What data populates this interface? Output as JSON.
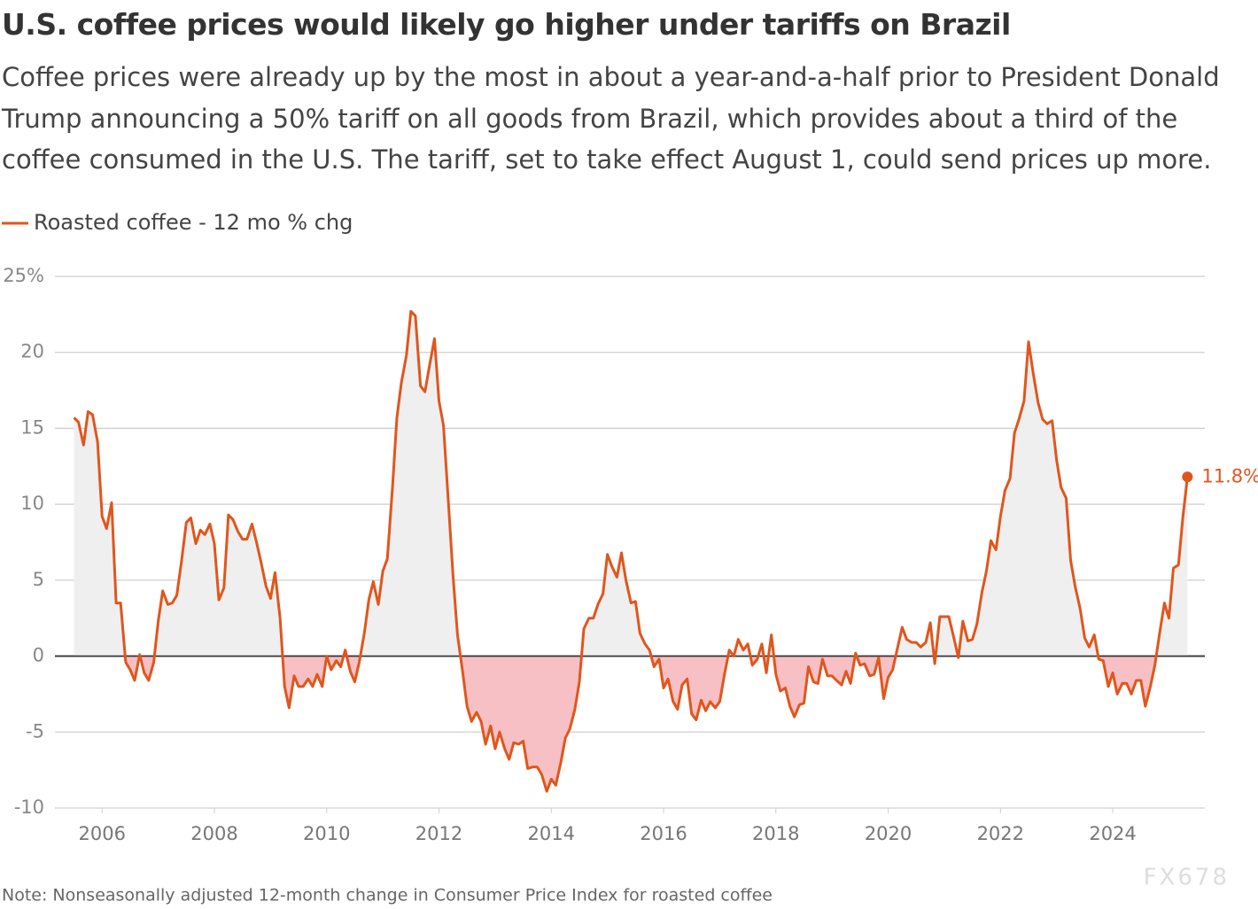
{
  "chart_data": {
    "type": "area-line",
    "title": "U.S. coffee prices would likely go higher under tariffs on Brazil",
    "subtitle": "Coffee prices were already up by the most in about a year-and-a-half prior to President Donald Trump announcing a 50% tariff on all goods from Brazil, which provides about a third of the coffee consumed in the U.S. The tariff, set to take effect August 1, could send prices up more.",
    "note": "Note: Nonseasonally adjusted 12-month change in Consumer Price Index for roasted coffee",
    "watermark": "FX678",
    "end_label": "11.8%",
    "x": [
      2005.5,
      2005.58,
      2005.67,
      2005.75,
      2005.83,
      2005.92,
      2006.0,
      2006.08,
      2006.17,
      2006.25,
      2006.33,
      2006.42,
      2006.5,
      2006.58,
      2006.67,
      2006.75,
      2006.83,
      2006.92,
      2007.0,
      2007.08,
      2007.17,
      2007.25,
      2007.33,
      2007.42,
      2007.5,
      2007.58,
      2007.67,
      2007.75,
      2007.83,
      2007.92,
      2008.0,
      2008.08,
      2008.17,
      2008.25,
      2008.33,
      2008.42,
      2008.5,
      2008.58,
      2008.67,
      2008.75,
      2008.83,
      2008.92,
      2009.0,
      2009.08,
      2009.17,
      2009.25,
      2009.33,
      2009.42,
      2009.5,
      2009.58,
      2009.67,
      2009.75,
      2009.83,
      2009.92,
      2010.0,
      2010.08,
      2010.17,
      2010.25,
      2010.33,
      2010.42,
      2010.5,
      2010.58,
      2010.67,
      2010.75,
      2010.83,
      2010.92,
      2011.0,
      2011.08,
      2011.17,
      2011.25,
      2011.33,
      2011.42,
      2011.5,
      2011.58,
      2011.67,
      2011.75,
      2011.83,
      2011.92,
      2012.0,
      2012.08,
      2012.17,
      2012.25,
      2012.33,
      2012.42,
      2012.5,
      2012.58,
      2012.67,
      2012.75,
      2012.83,
      2012.92,
      2013.0,
      2013.08,
      2013.17,
      2013.25,
      2013.33,
      2013.42,
      2013.5,
      2013.58,
      2013.67,
      2013.75,
      2013.83,
      2013.92,
      2014.0,
      2014.08,
      2014.17,
      2014.25,
      2014.33,
      2014.42,
      2014.5,
      2014.58,
      2014.67,
      2014.75,
      2014.83,
      2014.92,
      2015.0,
      2015.08,
      2015.17,
      2015.25,
      2015.33,
      2015.42,
      2015.5,
      2015.58,
      2015.67,
      2015.75,
      2015.83,
      2015.92,
      2016.0,
      2016.08,
      2016.17,
      2016.25,
      2016.33,
      2016.42,
      2016.5,
      2016.58,
      2016.67,
      2016.75,
      2016.83,
      2016.92,
      2017.0,
      2017.08,
      2017.17,
      2017.25,
      2017.33,
      2017.42,
      2017.5,
      2017.58,
      2017.67,
      2017.75,
      2017.83,
      2017.92,
      2018.0,
      2018.08,
      2018.17,
      2018.25,
      2018.33,
      2018.42,
      2018.5,
      2018.58,
      2018.67,
      2018.75,
      2018.83,
      2018.92,
      2019.0,
      2019.08,
      2019.17,
      2019.25,
      2019.33,
      2019.42,
      2019.5,
      2019.58,
      2019.67,
      2019.75,
      2019.83,
      2019.92,
      2020.0,
      2020.08,
      2020.17,
      2020.25,
      2020.33,
      2020.42,
      2020.5,
      2020.58,
      2020.67,
      2020.75,
      2020.83,
      2020.92,
      2021.0,
      2021.08,
      2021.17,
      2021.25,
      2021.33,
      2021.42,
      2021.5,
      2021.58,
      2021.67,
      2021.75,
      2021.83,
      2021.92,
      2022.0,
      2022.08,
      2022.17,
      2022.25,
      2022.33,
      2022.42,
      2022.5,
      2022.58,
      2022.67,
      2022.75,
      2022.83,
      2022.92,
      2023.0,
      2023.08,
      2023.17,
      2023.25,
      2023.33,
      2023.42,
      2023.5,
      2023.58,
      2023.67,
      2023.75,
      2023.83,
      2023.92,
      2024.0,
      2024.08,
      2024.17,
      2024.25,
      2024.33,
      2024.42,
      2024.5,
      2024.58,
      2024.67,
      2024.75,
      2024.83,
      2024.92,
      2025.0,
      2025.08,
      2025.17,
      2025.25,
      2025.33
    ],
    "series": [
      {
        "name": "Roasted coffee - 12 mo % chg",
        "color": "#e0561c",
        "values": [
          15.7,
          15.4,
          13.9,
          16.1,
          15.9,
          14.1,
          9.2,
          8.4,
          10.1,
          3.5,
          3.5,
          -0.4,
          -0.9,
          -1.6,
          0.1,
          -1.1,
          -1.6,
          -0.4,
          2.3,
          4.3,
          3.4,
          3.5,
          4.0,
          6.4,
          8.8,
          9.1,
          7.4,
          8.3,
          8.0,
          8.7,
          7.4,
          3.7,
          4.5,
          9.3,
          9.0,
          8.2,
          7.7,
          7.7,
          8.7,
          7.5,
          6.2,
          4.6,
          3.8,
          5.5,
          2.5,
          -2.0,
          -3.4,
          -1.3,
          -2.0,
          -2.0,
          -1.5,
          -2.0,
          -1.2,
          -2.0,
          0.0,
          -0.9,
          -0.3,
          -0.7,
          0.4,
          -1.0,
          -1.7,
          -0.4,
          1.5,
          3.7,
          4.9,
          3.4,
          5.6,
          6.4,
          11.0,
          15.7,
          18.0,
          19.8,
          22.7,
          22.4,
          17.8,
          17.4,
          19.1,
          20.9,
          16.8,
          15.2,
          10.0,
          5.3,
          1.4,
          -1.0,
          -3.3,
          -4.3,
          -3.7,
          -4.3,
          -5.8,
          -4.6,
          -6.1,
          -5.0,
          -6.1,
          -6.8,
          -5.7,
          -5.8,
          -5.6,
          -7.4,
          -7.3,
          -7.3,
          -7.8,
          -8.9,
          -8.1,
          -8.5,
          -7.0,
          -5.4,
          -4.8,
          -3.5,
          -1.7,
          1.8,
          2.5,
          2.5,
          3.4,
          4.1,
          6.7,
          5.9,
          5.2,
          6.8,
          5.0,
          3.5,
          3.6,
          1.5,
          0.8,
          0.4,
          -0.7,
          -0.2,
          -2.1,
          -1.5,
          -3.0,
          -3.5,
          -1.9,
          -1.5,
          -3.8,
          -4.2,
          -2.9,
          -3.6,
          -3.0,
          -3.4,
          -3.0,
          -1.3,
          0.4,
          0.0,
          1.1,
          0.4,
          0.8,
          -0.6,
          -0.2,
          0.8,
          -1.1,
          1.4,
          -1.2,
          -2.3,
          -2.1,
          -3.3,
          -4.0,
          -3.2,
          -3.1,
          -0.7,
          -1.7,
          -1.8,
          -0.2,
          -1.3,
          -1.3,
          -1.6,
          -1.9,
          -1.0,
          -1.8,
          0.2,
          -0.6,
          -0.5,
          -1.3,
          -1.2,
          -0.1,
          -2.8,
          -1.4,
          -0.9,
          0.6,
          1.9,
          1.1,
          0.9,
          0.9,
          0.6,
          0.9,
          2.2,
          -0.5,
          2.6,
          2.6,
          2.6,
          1.2,
          -0.1,
          2.3,
          1.0,
          1.1,
          2.1,
          4.2,
          5.6,
          7.6,
          7.0,
          9.2,
          10.9,
          11.7,
          14.7,
          15.6,
          16.8,
          20.7,
          18.7,
          16.7,
          15.6,
          15.3,
          15.5,
          12.9,
          11.1,
          10.4,
          6.3,
          4.6,
          3.1,
          1.2,
          0.6,
          1.4,
          -0.2,
          -0.3,
          -2.0,
          -1.1,
          -2.5,
          -1.8,
          -1.8,
          -2.5,
          -1.6,
          -1.6,
          -3.3,
          -2.0,
          -0.6,
          1.4,
          3.5,
          2.5,
          5.8,
          6.0,
          9.2,
          11.8
        ]
      }
    ],
    "fill_above": "#efefef",
    "fill_below": "#f7c0c4",
    "xlim": [
      2005.16,
      2025.64
    ],
    "xticks": [
      2006,
      2008,
      2010,
      2012,
      2014,
      2016,
      2018,
      2020,
      2022,
      2024
    ],
    "ylim": [
      -10,
      25
    ],
    "yticks": [
      -10,
      -5,
      0,
      5,
      10,
      15,
      20,
      {
        "value": 25,
        "label": "25%"
      }
    ],
    "grid": true,
    "legend": "top-left"
  }
}
